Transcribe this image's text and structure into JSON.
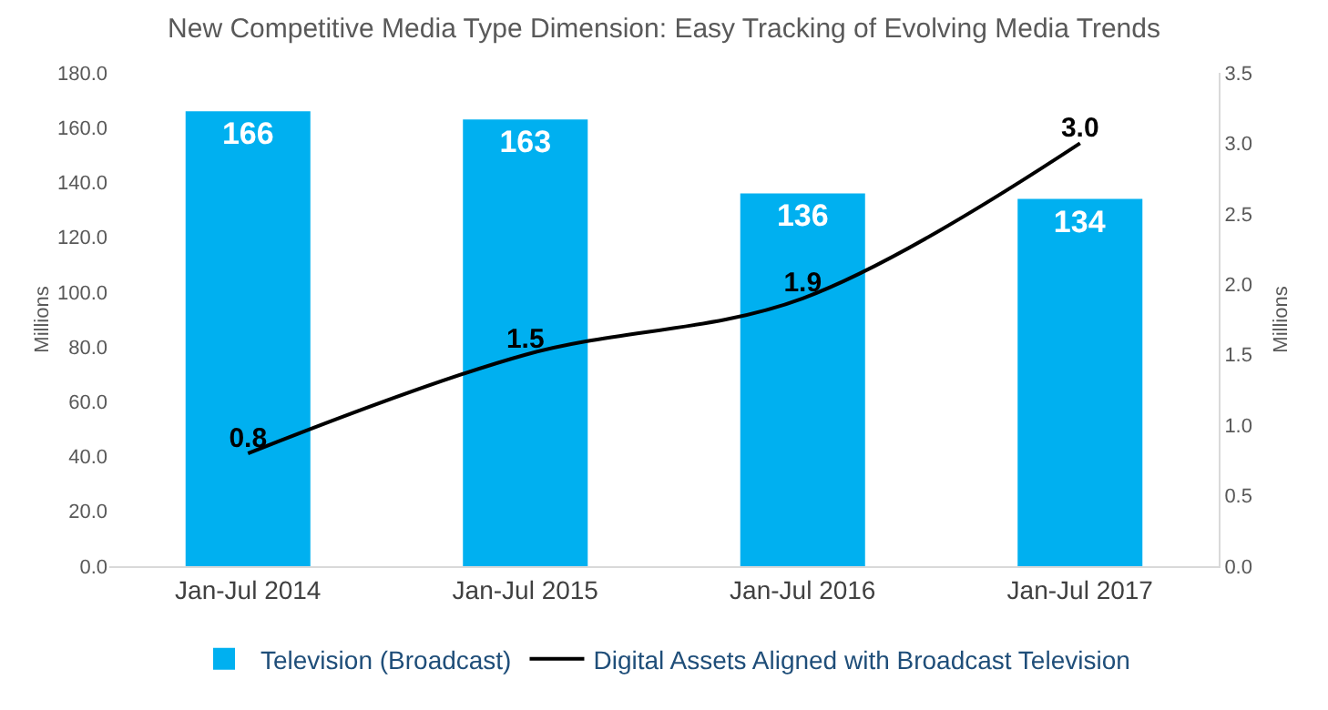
{
  "chart_data": {
    "type": "bar",
    "title": "New Competitive Media Type Dimension: Easy Tracking of Evolving Media Trends",
    "categories": [
      "Jan-Jul 2014",
      "Jan-Jul 2015",
      "Jan-Jul 2016",
      "Jan-Jul 2017"
    ],
    "series": [
      {
        "name": "Television (Broadcast)",
        "color": "#00b0f0",
        "values": [
          166,
          163,
          136,
          134
        ]
      },
      {
        "name": "Digital Assets Aligned with Broadcast Television",
        "type": "line",
        "axis": "y2",
        "color": "#000000",
        "values": [
          0.8,
          1.5,
          1.9,
          3.0
        ],
        "value_labels": [
          "0.8",
          "1.5",
          "1.9",
          "3.0"
        ]
      }
    ],
    "ylabel": "Millions",
    "y2label": "Millions",
    "ylim": [
      0,
      180
    ],
    "yticks": [
      {
        "value": 0,
        "label": "0.0"
      },
      {
        "value": 20,
        "label": "20.0"
      },
      {
        "value": 40,
        "label": "40.0"
      },
      {
        "value": 60,
        "label": "60.0"
      },
      {
        "value": 80,
        "label": "80.0"
      },
      {
        "value": 100,
        "label": "100.0"
      },
      {
        "value": 120,
        "label": "120.0"
      },
      {
        "value": 140,
        "label": "140.0"
      },
      {
        "value": 160,
        "label": "160.0"
      },
      {
        "value": 180,
        "label": "180.0"
      }
    ],
    "y2lim": [
      0,
      3.5
    ],
    "y2ticks": [
      {
        "value": 0,
        "label": "0.0"
      },
      {
        "value": 0.5,
        "label": "0.5"
      },
      {
        "value": 1,
        "label": "1.0"
      },
      {
        "value": 1.5,
        "label": "1.5"
      },
      {
        "value": 2,
        "label": "2.0"
      },
      {
        "value": 2.5,
        "label": "2.5"
      },
      {
        "value": 3,
        "label": "3.0"
      },
      {
        "value": 3.5,
        "label": "3.5"
      }
    ],
    "data_labels": true,
    "grid": false,
    "legend": "bottom",
    "marker": "none",
    "line_style": "solid"
  }
}
